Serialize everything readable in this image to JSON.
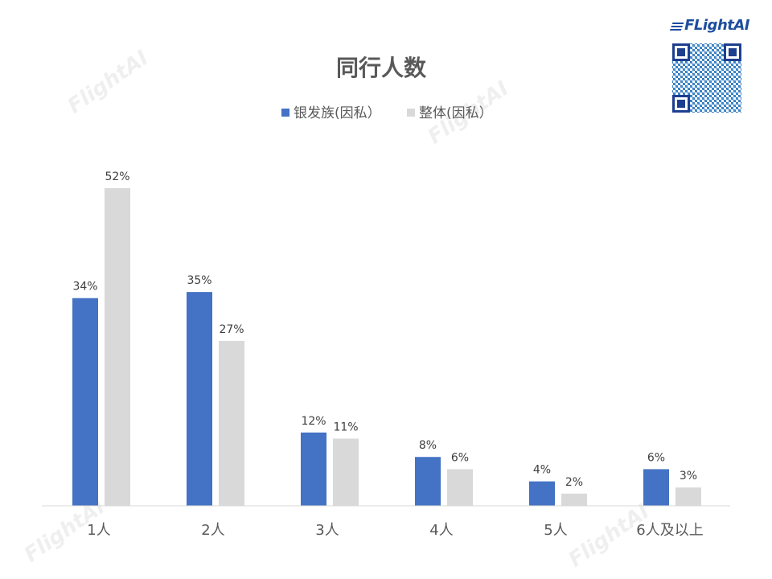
{
  "chart_data": {
    "type": "bar",
    "title": "同行人数",
    "categories": [
      "1人",
      "2人",
      "3人",
      "4人",
      "5人",
      "6人及以上"
    ],
    "series": [
      {
        "name": "银发族(因私）",
        "color": "#4472c4",
        "values": [
          34,
          35,
          12,
          8,
          4,
          6
        ],
        "labels": [
          "34%",
          "35%",
          "12%",
          "8%",
          "4%",
          "6%"
        ]
      },
      {
        "name": "整体(因私）",
        "color": "#d9d9d9",
        "values": [
          52,
          27,
          11,
          6,
          2,
          3
        ],
        "labels": [
          "52%",
          "27%",
          "11%",
          "6%",
          "2%",
          "3%"
        ]
      }
    ],
    "ylim": [
      0,
      52
    ],
    "unit": "%",
    "grid": false,
    "legend_position": "top-center",
    "value_axis_visible": false
  },
  "brand": {
    "logo_text": "FLightAI",
    "watermark_text": "FlightAI",
    "qr_code_icon": "qr-code-icon"
  }
}
